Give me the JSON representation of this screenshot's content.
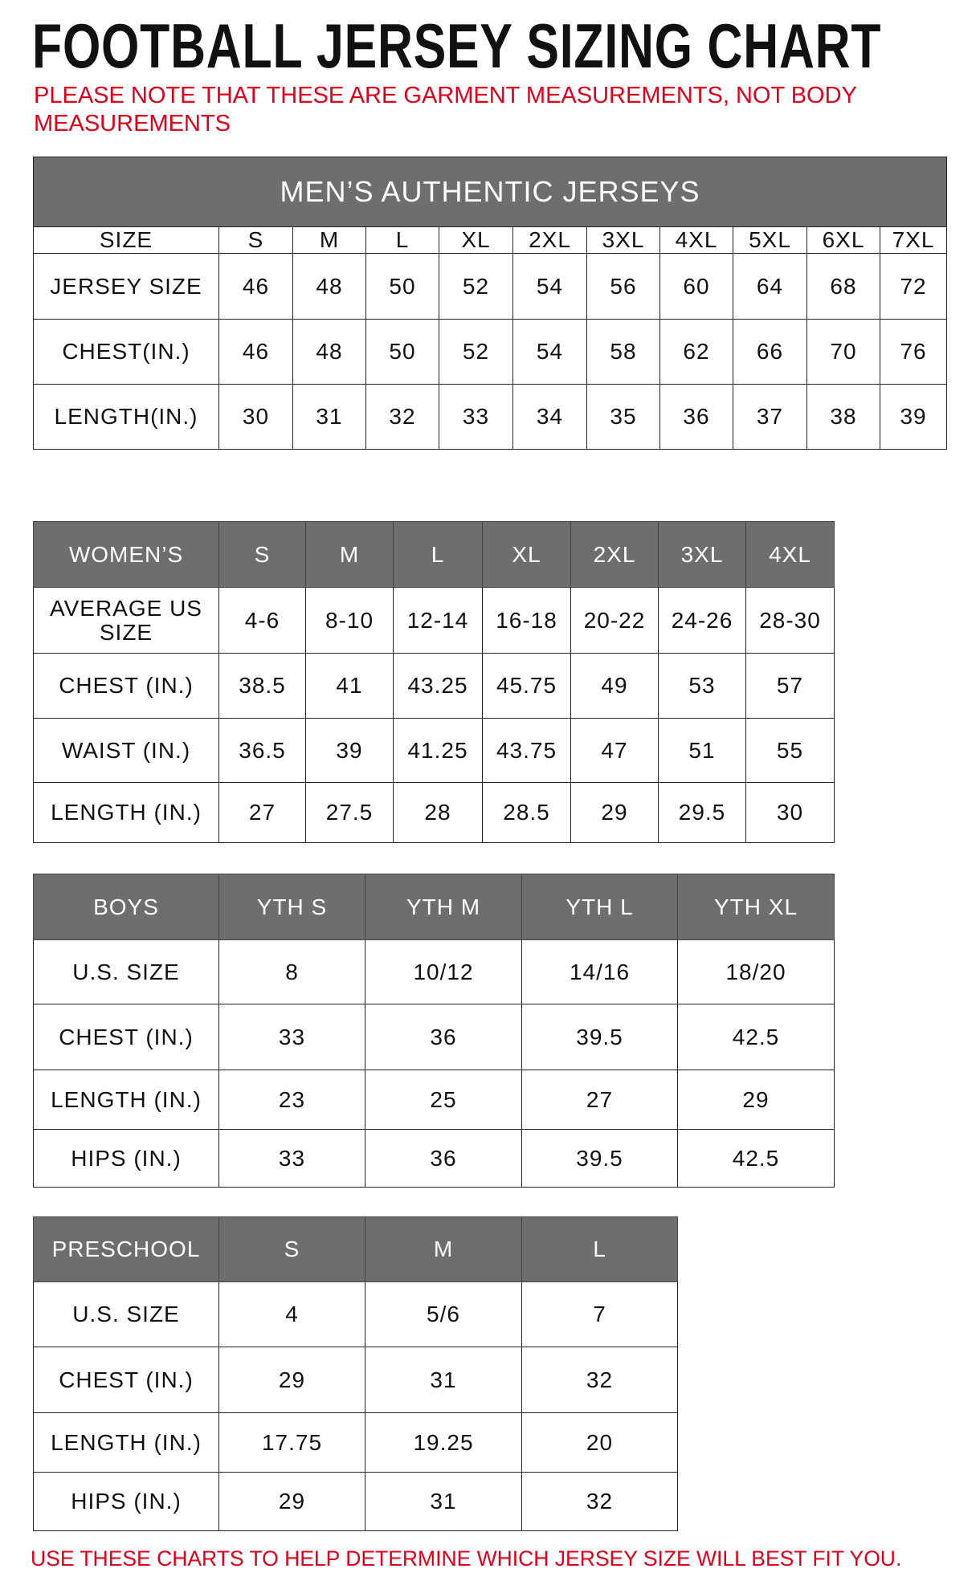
{
  "title": "FOOTBALL JERSEY SIZING CHART",
  "note": "PLEASE NOTE THAT THESE ARE GARMENT MEASUREMENTS, NOT BODY MEASUREMENTS",
  "footer": "USE THESE CHARTS TO HELP DETERMINE WHICH JERSEY SIZE WILL BEST FIT YOU.",
  "colors": {
    "header_gray": "#6e6e6e",
    "note_red": "#e0001a"
  },
  "tables": [
    {
      "banner": "MEN’S AUTHENTIC JERSEYS",
      "header_row_shaded": false,
      "rows": [
        [
          "SIZE",
          "S",
          "M",
          "L",
          "XL",
          "2XL",
          "3XL",
          "4XL",
          "5XL",
          "6XL",
          "7XL"
        ],
        [
          "JERSEY SIZE",
          "46",
          "48",
          "50",
          "52",
          "54",
          "56",
          "60",
          "64",
          "68",
          "72"
        ],
        [
          "CHEST(IN.)",
          "46",
          "48",
          "50",
          "52",
          "54",
          "58",
          "62",
          "66",
          "70",
          "76"
        ],
        [
          "LENGTH(IN.)",
          "30",
          "31",
          "32",
          "33",
          "34",
          "35",
          "36",
          "37",
          "38",
          "39"
        ]
      ]
    },
    {
      "header_row_shaded": true,
      "rows": [
        [
          "WOMEN’S",
          "S",
          "M",
          "L",
          "XL",
          "2XL",
          "3XL",
          "4XL"
        ],
        [
          "AVERAGE US SIZE",
          "4-6",
          "8-10",
          "12-14",
          "16-18",
          "20-22",
          "24-26",
          "28-30"
        ],
        [
          "CHEST (IN.)",
          "38.5",
          "41",
          "43.25",
          "45.75",
          "49",
          "53",
          "57"
        ],
        [
          "WAIST (IN.)",
          "36.5",
          "39",
          "41.25",
          "43.75",
          "47",
          "51",
          "55"
        ],
        [
          "LENGTH (IN.)",
          "27",
          "27.5",
          "28",
          "28.5",
          "29",
          "29.5",
          "30"
        ]
      ]
    },
    {
      "header_row_shaded": true,
      "rows": [
        [
          "BOYS",
          "YTH S",
          "YTH M",
          "YTH L",
          "YTH XL"
        ],
        [
          "U.S. SIZE",
          "8",
          "10/12",
          "14/16",
          "18/20"
        ],
        [
          "CHEST (IN.)",
          "33",
          "36",
          "39.5",
          "42.5"
        ],
        [
          "LENGTH (IN.)",
          "23",
          "25",
          "27",
          "29"
        ],
        [
          "HIPS (IN.)",
          "33",
          "36",
          "39.5",
          "42.5"
        ]
      ]
    },
    {
      "header_row_shaded": true,
      "rows": [
        [
          "PRESCHOOL",
          "S",
          "M",
          "L"
        ],
        [
          "U.S. SIZE",
          "4",
          "5/6",
          "7"
        ],
        [
          "CHEST (IN.)",
          "29",
          "31",
          "32"
        ],
        [
          "LENGTH (IN.)",
          "17.75",
          "19.25",
          "20"
        ],
        [
          "HIPS (IN.)",
          "29",
          "31",
          "32"
        ]
      ]
    }
  ]
}
